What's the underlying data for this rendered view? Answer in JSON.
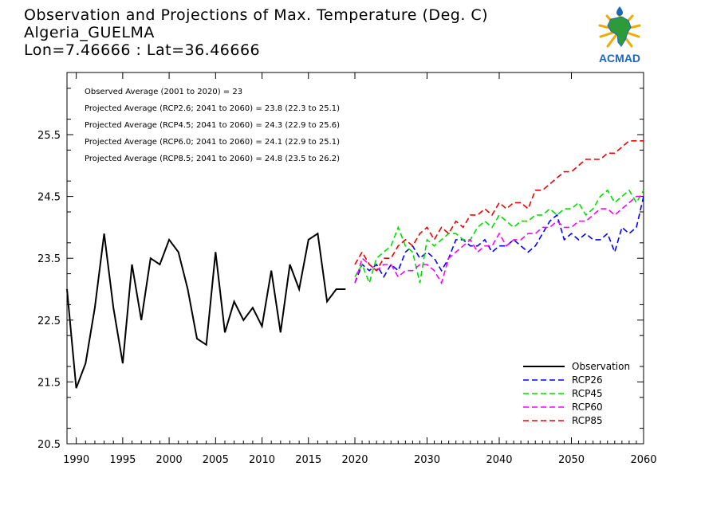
{
  "header": {
    "title": "Observation and Projections of Max. Temperature (Deg. C)",
    "location": "Algeria_GUELMA",
    "coords": "Lon=7.46666 : Lat=36.46666",
    "logo_text": "ACMAD"
  },
  "colors": {
    "observation": "#000000",
    "rcp26": "#0000ff",
    "rcp45": "#00dd00",
    "rcp60": "#ff00ff",
    "rcp85": "#ee0000",
    "logo_blue": "#1e66b8",
    "logo_gold": "#f2a900",
    "logo_green": "#2e9b3a"
  },
  "chart_data": {
    "type": "line",
    "xlim": [
      1989,
      2060
    ],
    "ylim": [
      20.5,
      26.35
    ],
    "x_ticks": [
      1990,
      1995,
      2000,
      2005,
      2010,
      2015,
      2020,
      2030,
      2040,
      2050,
      2060
    ],
    "x_tick_labels": [
      "1990",
      "1995",
      "2000",
      "2005",
      "2010",
      "2015",
      "2020",
      "2030",
      "2040",
      "2050",
      "2060"
    ],
    "y_ticks": [
      20.5,
      21.5,
      22.5,
      23.5,
      24.5,
      25.5
    ],
    "y_tick_labels": [
      "20.5",
      "21.5",
      "22.5",
      "23.5",
      "24.5",
      "25.5"
    ],
    "annotations": [
      "Observed Average (2001 to 2020) = 23",
      "Projected Average (RCP2.6; 2041 to 2060) = 23.8 (22.3 to 25.1)",
      "Projected Average (RCP4.5; 2041 to 2060) = 24.3 (22.9 to 25.6)",
      "Projected Average (RCP6.0; 2041 to 2060) = 24.1 (22.9 to 25.1)",
      "Projected Average (RCP8.5; 2041 to 2060) = 24.8 (23.5 to 26.2)"
    ],
    "legend_position": "bottom-right",
    "series": [
      {
        "name": "Observation",
        "style": "solid",
        "x": [
          1989,
          1990,
          1991,
          1992,
          1993,
          1994,
          1995,
          1996,
          1997,
          1998,
          1999,
          2000,
          2001,
          2002,
          2003,
          2004,
          2005,
          2006,
          2007,
          2008,
          2009,
          2010,
          2011,
          2012,
          2013,
          2014,
          2015,
          2016,
          2017,
          2018,
          2019
        ],
        "values": [
          23.0,
          21.4,
          21.8,
          22.7,
          23.9,
          22.7,
          21.8,
          23.4,
          22.5,
          23.5,
          23.4,
          23.8,
          23.6,
          23.0,
          22.2,
          22.1,
          23.6,
          22.3,
          22.8,
          22.5,
          22.7,
          22.4,
          23.3,
          22.3,
          23.4,
          23.0,
          23.8,
          23.9,
          22.8,
          23.0,
          23.0
        ]
      },
      {
        "name": "RCP26",
        "style": "dashed",
        "x": [
          2020,
          2021,
          2022,
          2023,
          2024,
          2025,
          2026,
          2027,
          2028,
          2029,
          2030,
          2031,
          2032,
          2033,
          2034,
          2035,
          2036,
          2037,
          2038,
          2039,
          2040,
          2041,
          2042,
          2043,
          2044,
          2045,
          2046,
          2047,
          2048,
          2049,
          2050,
          2051,
          2052,
          2053,
          2054,
          2055,
          2056,
          2057,
          2058,
          2059,
          2060
        ],
        "values": [
          23.1,
          23.4,
          23.3,
          23.4,
          23.2,
          23.4,
          23.3,
          23.6,
          23.7,
          23.5,
          23.6,
          23.5,
          23.3,
          23.5,
          23.8,
          23.8,
          23.7,
          23.7,
          23.8,
          23.6,
          23.7,
          23.7,
          23.8,
          23.7,
          23.6,
          23.7,
          23.9,
          24.1,
          24.2,
          23.8,
          23.9,
          23.8,
          23.9,
          23.8,
          23.8,
          23.9,
          23.6,
          24.0,
          23.9,
          24.0,
          24.5
        ]
      },
      {
        "name": "RCP45",
        "style": "dashed",
        "x": [
          2020,
          2021,
          2022,
          2023,
          2024,
          2025,
          2026,
          2027,
          2028,
          2029,
          2030,
          2031,
          2032,
          2033,
          2034,
          2035,
          2036,
          2037,
          2038,
          2039,
          2040,
          2041,
          2042,
          2043,
          2044,
          2045,
          2046,
          2047,
          2048,
          2049,
          2050,
          2051,
          2052,
          2053,
          2054,
          2055,
          2056,
          2057,
          2058,
          2059,
          2060
        ],
        "values": [
          23.2,
          23.4,
          23.1,
          23.5,
          23.6,
          23.7,
          24.0,
          23.7,
          23.6,
          23.1,
          23.8,
          23.7,
          23.8,
          23.9,
          23.9,
          23.8,
          23.8,
          24.0,
          24.1,
          24.0,
          24.2,
          24.1,
          24.0,
          24.1,
          24.1,
          24.2,
          24.2,
          24.3,
          24.2,
          24.3,
          24.3,
          24.4,
          24.2,
          24.3,
          24.5,
          24.6,
          24.4,
          24.5,
          24.6,
          24.4,
          24.6
        ]
      },
      {
        "name": "RCP60",
        "style": "dashed",
        "x": [
          2020,
          2021,
          2022,
          2023,
          2024,
          2025,
          2026,
          2027,
          2028,
          2029,
          2030,
          2031,
          2032,
          2033,
          2034,
          2035,
          2036,
          2037,
          2038,
          2039,
          2040,
          2041,
          2042,
          2043,
          2044,
          2045,
          2046,
          2047,
          2048,
          2049,
          2050,
          2051,
          2052,
          2053,
          2054,
          2055,
          2056,
          2057,
          2058,
          2059,
          2060
        ],
        "values": [
          23.1,
          23.5,
          23.4,
          23.3,
          23.4,
          23.4,
          23.2,
          23.3,
          23.3,
          23.4,
          23.4,
          23.3,
          23.1,
          23.5,
          23.6,
          23.7,
          23.8,
          23.6,
          23.7,
          23.7,
          23.9,
          23.7,
          23.8,
          23.8,
          23.9,
          23.9,
          24.0,
          24.0,
          24.1,
          24.0,
          24.0,
          24.1,
          24.1,
          24.2,
          24.3,
          24.3,
          24.2,
          24.3,
          24.4,
          24.5,
          24.5
        ]
      },
      {
        "name": "RCP85",
        "style": "dashed",
        "x": [
          2020,
          2021,
          2022,
          2023,
          2024,
          2025,
          2026,
          2027,
          2028,
          2029,
          2030,
          2031,
          2032,
          2033,
          2034,
          2035,
          2036,
          2037,
          2038,
          2039,
          2040,
          2041,
          2042,
          2043,
          2044,
          2045,
          2046,
          2047,
          2048,
          2049,
          2050,
          2051,
          2052,
          2053,
          2054,
          2055,
          2056,
          2057,
          2058,
          2059,
          2060
        ],
        "values": [
          23.4,
          23.6,
          23.4,
          23.3,
          23.5,
          23.5,
          23.7,
          23.8,
          23.7,
          23.9,
          24.0,
          23.8,
          24.0,
          23.9,
          24.1,
          24.0,
          24.2,
          24.2,
          24.3,
          24.2,
          24.4,
          24.3,
          24.4,
          24.4,
          24.3,
          24.6,
          24.6,
          24.7,
          24.8,
          24.9,
          24.9,
          25.0,
          25.1,
          25.1,
          25.1,
          25.2,
          25.2,
          25.3,
          25.4,
          25.4,
          25.4
        ]
      }
    ]
  }
}
